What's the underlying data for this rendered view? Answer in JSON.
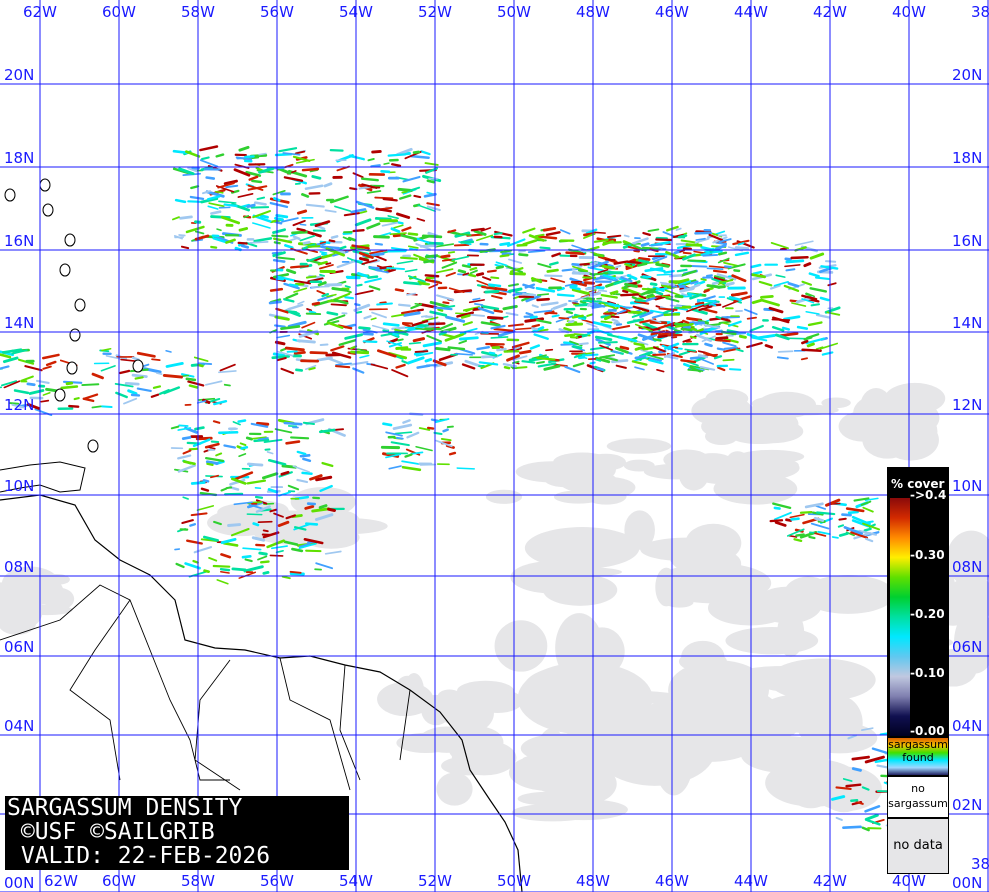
{
  "map": {
    "title_lines": [
      "SARGASSUM DENSITY",
      " ©USF ©SAILGRIB",
      " VALID: 22-FEB-2026"
    ],
    "longitude_labels": [
      "62W",
      "60W",
      "58W",
      "56W",
      "54W",
      "52W",
      "50W",
      "48W",
      "46W",
      "44W",
      "42W",
      "40W",
      "38"
    ],
    "latitude_labels": [
      "20N",
      "18N",
      "16N",
      "14N",
      "12N",
      "10N",
      "08N",
      "06N",
      "04N",
      "02N",
      "00N"
    ],
    "grid_color": "#1a1aff",
    "land_outline_color": "#000000",
    "no_data_color": "#e6e6e8"
  },
  "legend": {
    "title": "% cover",
    "ticks": [
      "->0.4",
      "-0.30",
      "-0.20",
      "-0.10",
      "-0.00"
    ],
    "found_label": "sargassum found",
    "no_sargassum_label": "no sargassum",
    "no_data_label": "no data",
    "colors": {
      "high": "#8a0a0a",
      "mid": "#ffee00",
      "low_mid": "#00d030",
      "low": "#00e8ff",
      "zero": "#000020"
    }
  }
}
